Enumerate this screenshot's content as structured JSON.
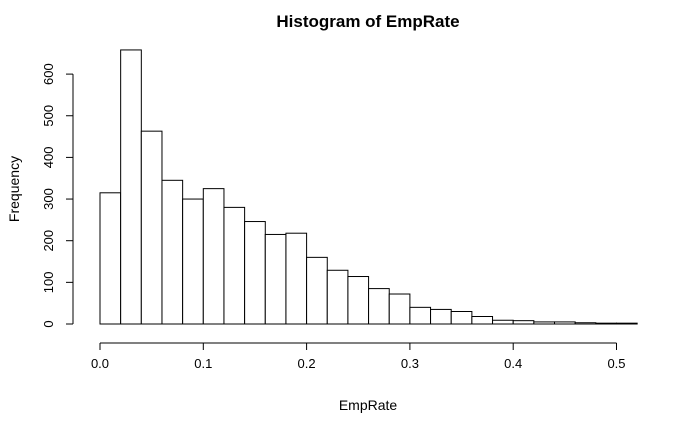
{
  "chart_data": {
    "type": "bar",
    "title": "Histogram of EmpRate",
    "xlabel": "EmpRate",
    "ylabel": "Frequency",
    "bin_width": 0.02,
    "x_start": 0.0,
    "bins": [
      {
        "from": 0.0,
        "to": 0.02,
        "count": 315
      },
      {
        "from": 0.02,
        "to": 0.04,
        "count": 658
      },
      {
        "from": 0.04,
        "to": 0.06,
        "count": 463
      },
      {
        "from": 0.06,
        "to": 0.08,
        "count": 345
      },
      {
        "from": 0.08,
        "to": 0.1,
        "count": 300
      },
      {
        "from": 0.1,
        "to": 0.12,
        "count": 325
      },
      {
        "from": 0.12,
        "to": 0.14,
        "count": 280
      },
      {
        "from": 0.14,
        "to": 0.16,
        "count": 246
      },
      {
        "from": 0.16,
        "to": 0.18,
        "count": 215
      },
      {
        "from": 0.18,
        "to": 0.2,
        "count": 218
      },
      {
        "from": 0.2,
        "to": 0.22,
        "count": 160
      },
      {
        "from": 0.22,
        "to": 0.24,
        "count": 129
      },
      {
        "from": 0.24,
        "to": 0.26,
        "count": 114
      },
      {
        "from": 0.26,
        "to": 0.28,
        "count": 85
      },
      {
        "from": 0.28,
        "to": 0.3,
        "count": 72
      },
      {
        "from": 0.3,
        "to": 0.32,
        "count": 40
      },
      {
        "from": 0.32,
        "to": 0.34,
        "count": 35
      },
      {
        "from": 0.34,
        "to": 0.36,
        "count": 30
      },
      {
        "from": 0.36,
        "to": 0.38,
        "count": 18
      },
      {
        "from": 0.38,
        "to": 0.4,
        "count": 9
      },
      {
        "from": 0.4,
        "to": 0.42,
        "count": 8
      },
      {
        "from": 0.42,
        "to": 0.44,
        "count": 5
      },
      {
        "from": 0.44,
        "to": 0.46,
        "count": 5
      },
      {
        "from": 0.46,
        "to": 0.48,
        "count": 3
      },
      {
        "from": 0.48,
        "to": 0.5,
        "count": 2
      },
      {
        "from": 0.5,
        "to": 0.52,
        "count": 2
      }
    ],
    "xticks": [
      "0.0",
      "0.1",
      "0.2",
      "0.3",
      "0.4",
      "0.5"
    ],
    "xtick_values": [
      0.0,
      0.1,
      0.2,
      0.3,
      0.4,
      0.5
    ],
    "yticks": [
      "0",
      "100",
      "200",
      "300",
      "400",
      "500",
      "600"
    ],
    "ytick_values": [
      0,
      100,
      200,
      300,
      400,
      500,
      600
    ],
    "xlim": [
      0.0,
      0.52
    ],
    "ylim": [
      0,
      658
    ],
    "grid": false,
    "legend": "none",
    "colors": {
      "bar_fill": "#ffffff",
      "bar_stroke": "#000000"
    }
  }
}
